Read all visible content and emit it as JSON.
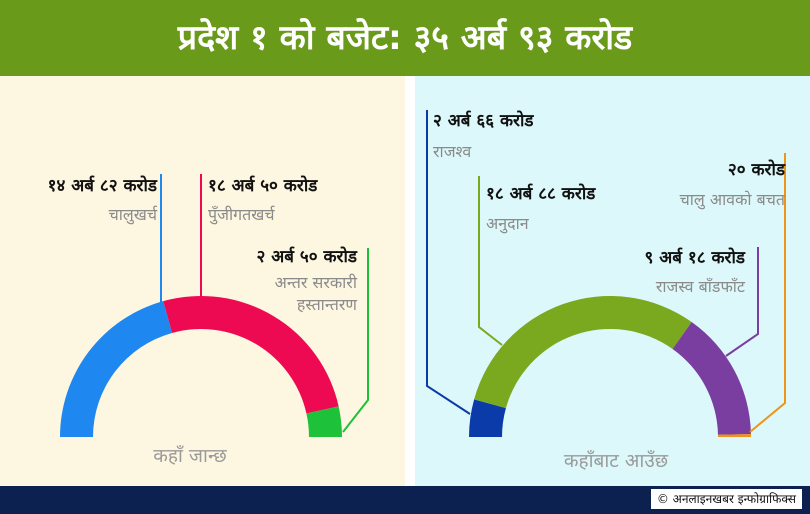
{
  "title": "प्रदेश १ को बजेट: ३५ अर्ब ९३ करोड",
  "credit": "© अनलाइनखबर इन्फोग्राफिक्स",
  "chart_data": [
    {
      "type": "pie",
      "title": "कहाँ जान्छ",
      "slices": [
        {
          "label": "चालुखर्च",
          "amount_text": "१४ अर्ब ८२ करोड",
          "value": 14.82,
          "color": "#1e88f0"
        },
        {
          "label": "पुँजीगतखर्च",
          "amount_text": "१८ अर्ब ५० करोड",
          "value": 18.5,
          "color": "#ee0a52"
        },
        {
          "label": "अन्तर सरकारी हस्तान्तरण",
          "label_lines": [
            "अन्तर सरकारी",
            "हस्तान्तरण"
          ],
          "amount_text": "२ अर्ब ५० करोड",
          "value": 2.5,
          "color": "#1ec23a"
        }
      ]
    },
    {
      "type": "pie",
      "title": "कहाँबाट आउँछ",
      "slices": [
        {
          "label": "राजश्व",
          "amount_text": "२ अर्ब ६६ करोड",
          "value": 2.66,
          "color": "#0a3ba8"
        },
        {
          "label": "अनुदान",
          "amount_text": "१८ अर्ब ८८ करोड",
          "value": 18.88,
          "color": "#7aa81e"
        },
        {
          "label": "राजस्व बाँडफाँट",
          "amount_text": "९ अर्ब १८ करोड",
          "value": 9.18,
          "color": "#7a3ea0"
        },
        {
          "label": "चालु आवको बचत",
          "amount_text": "२० करोड",
          "value": 0.2,
          "color": "#f09418"
        }
      ]
    }
  ]
}
